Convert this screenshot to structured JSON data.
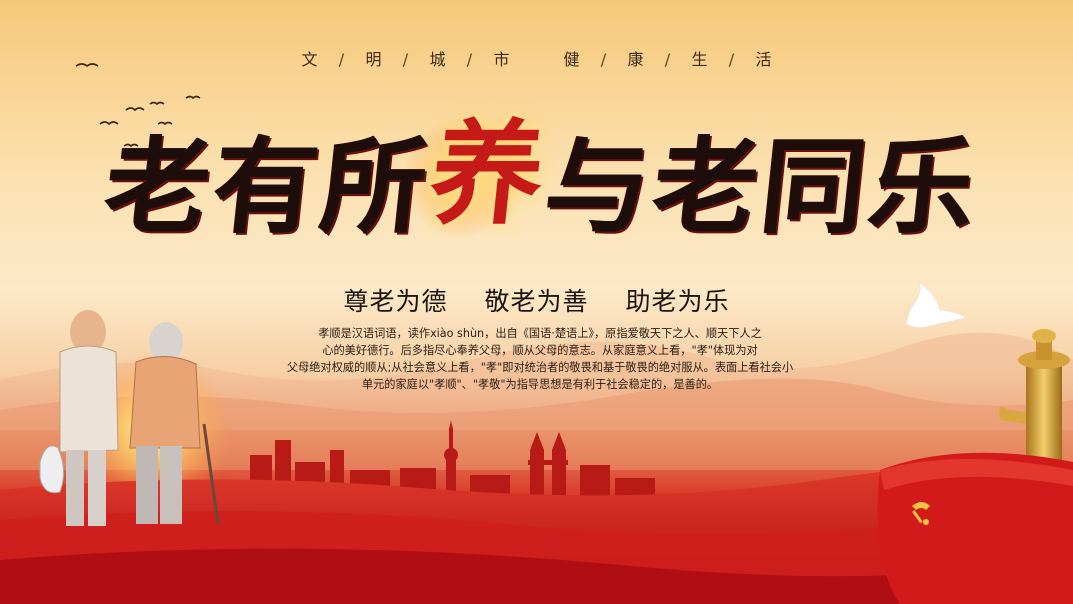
{
  "colors": {
    "primary_red": "#c8161a",
    "gold": "#e9b43a",
    "ink": "#1d0e0b",
    "sky_top": "#f7c87a"
  },
  "icons": [
    "birds-icon",
    "dove-icon",
    "elderly-couple-illustration",
    "city-skyline-icon",
    "huabiao-column-icon",
    "party-flag-icon"
  ],
  "slogan": {
    "left": [
      "文",
      "明",
      "城",
      "市"
    ],
    "right": [
      "健",
      "康",
      "生",
      "活"
    ],
    "separator": "/"
  },
  "title": {
    "chars": [
      "老",
      "有",
      "所",
      "养",
      "与",
      "老",
      "同",
      "乐"
    ]
  },
  "subtitle": {
    "phrase1": "尊老为德",
    "phrase2": "敬老为善",
    "phrase3": "助老为乐"
  },
  "description": {
    "line1": "孝顺是汉语词语，读作xiào shùn，出自《国语·楚语上》，原指爱敬天下之人、顺天下人之",
    "line2": "心的美好德行。后多指尽心奉养父母，顺从父母的意志。从家庭意义上看，\"孝\"体现为对",
    "line3": "父母绝对权威的顺从;从社会意义上看，\"孝\"即对统治者的敬畏和基于敬畏的绝对服从。表面上看社会小",
    "line4": "单元的家庭以\"孝顺\"、\"孝敬\"为指导思想是有利于社会稳定的，是善的。"
  }
}
